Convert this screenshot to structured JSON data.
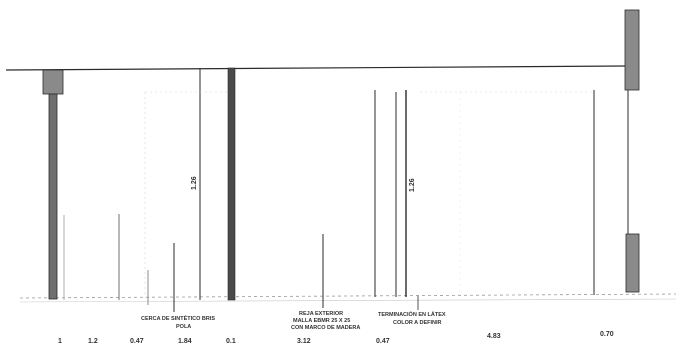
{
  "colors": {
    "ink": "#2b2b2b",
    "fill": "#6f6f6f",
    "light": "#9a9a9a",
    "faint": "#c8c8c8"
  },
  "dimensions": {
    "d1": "1",
    "d2": "1.2",
    "d3": "0.47",
    "d4": "1.84",
    "d5": "0.1",
    "d6": "3.12",
    "d7": "0.47",
    "d8": "4.83",
    "d9": "0.70"
  },
  "heights": {
    "h1": "1.26",
    "h2": "1.26"
  },
  "notes": {
    "n1_line1": "CERCA DE SINTÉTICO BRIS",
    "n1_line2": "POLA",
    "n2_line1": "REJA EXTERIOR",
    "n2_line2": "MALLA EBMR 25 X 25",
    "n2_line3": "CON MARCO DE MADERA",
    "n3_line1": "TERMINACIÓN EN LÁTEX",
    "n3_line2": "COLOR A DEFINIR"
  }
}
